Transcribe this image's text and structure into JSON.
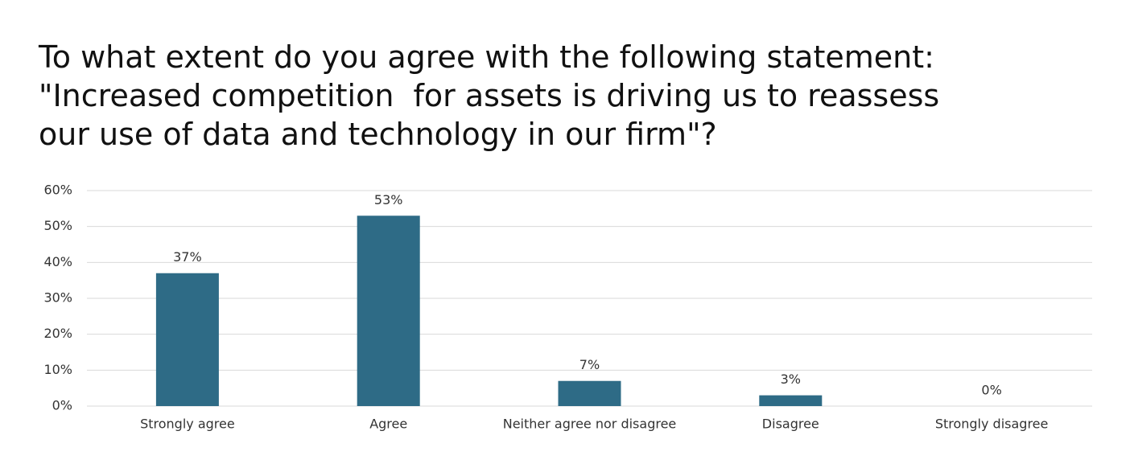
{
  "chart_data": {
    "type": "bar",
    "title": [
      "To what extent do you agree with the following statement:",
      "\"Increased competition  for assets is driving us to reassess",
      "our use of data and technology in our firm\"?"
    ],
    "categories": [
      "Strongly agree",
      "Agree",
      "Neither agree nor disagree",
      "Disagree",
      "Strongly disagree"
    ],
    "values": [
      37,
      53,
      7,
      3,
      0
    ],
    "value_labels": [
      "37%",
      "53%",
      "7%",
      "3%",
      "0%"
    ],
    "color": "#2e6b86",
    "ylim": [
      0,
      60
    ],
    "yticks": [
      {
        "value": 0,
        "label": "0%"
      },
      {
        "value": 10,
        "label": "10%"
      },
      {
        "value": 20,
        "label": "20%"
      },
      {
        "value": 30,
        "label": "30%"
      },
      {
        "value": 40,
        "label": "40%"
      },
      {
        "value": 50,
        "label": "50%"
      },
      {
        "value": 60,
        "label": "60%"
      }
    ],
    "grid": true
  }
}
